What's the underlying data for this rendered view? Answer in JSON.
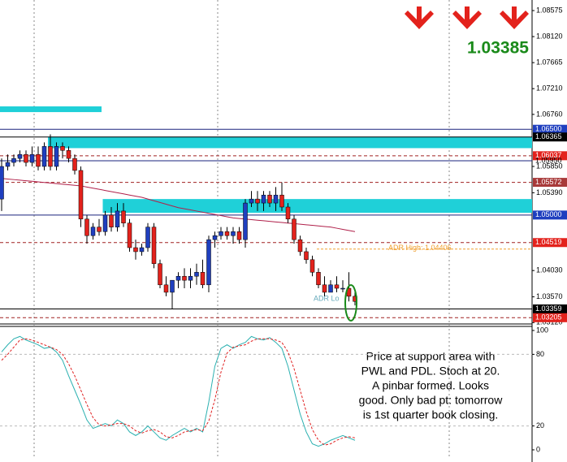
{
  "chart_data": [
    {
      "type": "candlestick",
      "ylim": [
        1.0311,
        1.0876
      ],
      "yticks": [
        1.08575,
        {
          "value": 1.0812,
          "label": "1.08120"
        },
        1.07665,
        {
          "value": 1.0721,
          "label": "1.07210"
        },
        {
          "value": 1.0676,
          "label": "1.06760"
        },
        {
          "value": 1.0585,
          "label": "1.05850"
        },
        {
          "value": 1.0539,
          "label": "1.05390"
        },
        {
          "value": 1.0403,
          "label": "1.04030"
        },
        {
          "value": 1.0357,
          "label": "1.03570"
        },
        {
          "value": 1.0312,
          "label": "1.03120"
        }
      ],
      "up_color": "#1f3fbf",
      "down_color": "#e3221c",
      "ohlc": [
        [
          1.0528,
          1.0599,
          1.0507,
          1.0585
        ],
        [
          1.0585,
          1.0606,
          1.0578,
          1.0592
        ],
        [
          1.0592,
          1.0606,
          1.0585,
          1.0599
        ],
        [
          1.0599,
          1.0613,
          1.0592,
          1.0606
        ],
        [
          1.0606,
          1.0613,
          1.0585,
          1.0592
        ],
        [
          1.0592,
          1.062,
          1.0585,
          1.0606
        ],
        [
          1.0606,
          1.062,
          1.0578,
          1.0585
        ],
        [
          1.0585,
          1.0627,
          1.0578,
          1.062
        ],
        [
          1.062,
          1.0641,
          1.0578,
          1.0585
        ],
        [
          1.0585,
          1.0627,
          1.0578,
          1.062
        ],
        [
          1.062,
          1.0627,
          1.0599,
          1.0613
        ],
        [
          1.0613,
          1.062,
          1.0592,
          1.0599
        ],
        [
          1.0599,
          1.0606,
          1.0571,
          1.0578
        ],
        [
          1.0578,
          1.0585,
          1.0479,
          1.0493
        ],
        [
          1.0493,
          1.05,
          1.045,
          1.0464
        ],
        [
          1.0464,
          1.0486,
          1.0457,
          1.0479
        ],
        [
          1.0479,
          1.0493,
          1.0464,
          1.0471
        ],
        [
          1.0471,
          1.0507,
          1.0464,
          1.05
        ],
        [
          1.05,
          1.0514,
          1.0471,
          1.0479
        ],
        [
          1.0479,
          1.0521,
          1.0471,
          1.0507
        ],
        [
          1.0507,
          1.0521,
          1.0479,
          1.0486
        ],
        [
          1.0486,
          1.0493,
          1.0436,
          1.0443
        ],
        [
          1.0443,
          1.0457,
          1.0422,
          1.0436
        ],
        [
          1.0436,
          1.045,
          1.0429,
          1.0443
        ],
        [
          1.0443,
          1.0486,
          1.0436,
          1.0479
        ],
        [
          1.0479,
          1.0486,
          1.0407,
          1.0415
        ],
        [
          1.0415,
          1.0422,
          1.0372,
          1.0378
        ],
        [
          1.0378,
          1.0393,
          1.0358,
          1.0365
        ],
        [
          1.0365,
          1.0386,
          1.0336,
          1.0386
        ],
        [
          1.0386,
          1.04,
          1.0372,
          1.0393
        ],
        [
          1.0393,
          1.0407,
          1.0372,
          1.0386
        ],
        [
          1.0386,
          1.0407,
          1.0372,
          1.0393
        ],
        [
          1.0393,
          1.0415,
          1.0378,
          1.04
        ],
        [
          1.04,
          1.0422,
          1.0372,
          1.0378
        ],
        [
          1.0378,
          1.0464,
          1.0365,
          1.0457
        ],
        [
          1.0457,
          1.0471,
          1.0443,
          1.0464
        ],
        [
          1.0464,
          1.0479,
          1.0457,
          1.0471
        ],
        [
          1.0471,
          1.0479,
          1.0457,
          1.0464
        ],
        [
          1.0464,
          1.0479,
          1.045,
          1.0471
        ],
        [
          1.0471,
          1.0479,
          1.045,
          1.0457
        ],
        [
          1.0457,
          1.0528,
          1.0443,
          1.0521
        ],
        [
          1.0521,
          1.0542,
          1.0514,
          1.0528
        ],
        [
          1.0528,
          1.0542,
          1.0507,
          1.0521
        ],
        [
          1.0521,
          1.0542,
          1.0507,
          1.0535
        ],
        [
          1.0535,
          1.0542,
          1.0514,
          1.0521
        ],
        [
          1.0521,
          1.0549,
          1.0507,
          1.0535
        ],
        [
          1.0535,
          1.0557,
          1.0507,
          1.0514
        ],
        [
          1.0514,
          1.0521,
          1.0486,
          1.0493
        ],
        [
          1.0493,
          1.05,
          1.045,
          1.0457
        ],
        [
          1.0457,
          1.0464,
          1.0429,
          1.0436
        ],
        [
          1.0436,
          1.0443,
          1.0415,
          1.0422
        ],
        [
          1.0422,
          1.0429,
          1.0393,
          1.04
        ],
        [
          1.04,
          1.0407,
          1.0372,
          1.0378
        ],
        [
          1.0378,
          1.0393,
          1.0358,
          1.0365
        ],
        [
          1.0365,
          1.0386,
          1.0365,
          1.0378
        ],
        [
          1.0378,
          1.0393,
          1.0365,
          1.0372
        ],
        [
          1.0372,
          1.0386,
          1.0365,
          1.0372
        ],
        [
          1.0372,
          1.04,
          1.0349,
          1.0358
        ],
        [
          1.0358,
          1.0365,
          1.0342,
          1.0349
        ]
      ],
      "ma": {
        "color": "#b0204a",
        "values": [
          1.0564,
          1.0563,
          1.0562,
          1.0561,
          1.056,
          1.0559,
          1.0558,
          1.0557,
          1.0556,
          1.0555,
          1.0554,
          1.0553,
          1.0552,
          1.0551,
          1.0549,
          1.0547,
          1.0545,
          1.0543,
          1.0541,
          1.0539,
          1.0537,
          1.0535,
          1.0533,
          1.0531,
          1.0528,
          1.0525,
          1.0522,
          1.0519,
          1.0516,
          1.0513,
          1.0511,
          1.0509,
          1.0507,
          1.0505,
          1.0503,
          1.0501,
          1.0499,
          1.0497,
          1.0495,
          1.0494,
          1.0493,
          1.0492,
          1.0491,
          1.049,
          1.0489,
          1.0488,
          1.0487,
          1.0486,
          1.0485,
          1.0484,
          1.0483,
          1.0482,
          1.0481,
          1.048,
          1.0479,
          1.0477,
          1.0475,
          1.0473,
          1.0471
        ]
      },
      "zones": [
        {
          "from": 1.069,
          "to": 1.068,
          "start": 0,
          "end": 16
        },
        {
          "from": 1.0637,
          "to": 1.0617,
          "start": 8,
          "end": null
        },
        {
          "from": 1.0528,
          "to": 1.0504,
          "start": 17,
          "end": null
        }
      ],
      "levels": [
        {
          "value": 1.065,
          "label": "1.06500",
          "line": "#1a237e",
          "box": "#1f3fbf",
          "dash": false
        },
        {
          "value": 1.06365,
          "label": "1.06365",
          "line": "#000000",
          "box": "#000000",
          "dash": false
        },
        {
          "value": 1.06037,
          "label": "1.06037",
          "line": "#a02020",
          "box": "#e3221c",
          "dash": true
        },
        {
          "value": 1.0595,
          "label": "1.05950",
          "line": "#1a237e",
          "box": null,
          "dash": false
        },
        {
          "value": 1.05572,
          "label": "1.05572",
          "line": "#a02020",
          "box": "#a83a3a",
          "dash": true
        },
        {
          "value": 1.05,
          "label": "1.05000",
          "line": "#1a237e",
          "box": "#1f3fbf",
          "dash": false
        },
        {
          "value": 1.04519,
          "label": "1.04519",
          "line": "#a02020",
          "box": "#e3221c",
          "dash": true
        },
        {
          "value": 1.03359,
          "label": "1.03359",
          "line": "#000000",
          "box": "#000000",
          "dash": false
        },
        {
          "value": 1.03205,
          "label": "1.03205",
          "line": "#a02020",
          "box": "#e3221c",
          "dash": true
        }
      ],
      "adr_high": {
        "value": 1.04406,
        "label": "ADR High: 1.04406",
        "color": "#f0a030"
      },
      "adr_low_label": "ADR Lo",
      "price_label": "1.03385",
      "note": [
        "Price at support area with",
        "PWL and PDL. Stoch at 20.",
        "A pinbar formed. Looks",
        "good. Only bad pt: tomorrow",
        "is 1st quarter book closing."
      ]
    },
    {
      "type": "line",
      "ylim": [
        0,
        100
      ],
      "yticks": [
        100,
        80,
        20,
        0
      ],
      "grid_ticks": [
        80,
        20
      ],
      "series": [
        {
          "color": "#2ab0b0",
          "dash": false,
          "values": [
            82,
            88,
            93,
            95,
            92,
            90,
            88,
            85,
            86,
            82,
            75,
            62,
            50,
            38,
            25,
            18,
            20,
            22,
            20,
            25,
            22,
            15,
            12,
            15,
            20,
            15,
            10,
            8,
            12,
            15,
            18,
            15,
            18,
            15,
            40,
            70,
            85,
            88,
            85,
            88,
            90,
            95,
            93,
            92,
            94,
            90,
            85,
            70,
            50,
            30,
            15,
            5,
            3,
            5,
            8,
            10,
            12,
            10,
            8
          ]
        },
        {
          "color": "#e02020",
          "dash": true,
          "values": [
            75,
            80,
            86,
            92,
            93,
            92,
            90,
            88,
            86,
            84,
            80,
            72,
            62,
            50,
            38,
            27,
            21,
            20,
            21,
            22,
            22,
            20,
            16,
            14,
            16,
            17,
            15,
            11,
            10,
            12,
            15,
            16,
            17,
            16,
            24,
            42,
            65,
            81,
            86,
            87,
            88,
            91,
            93,
            93,
            93,
            92,
            90,
            82,
            68,
            50,
            32,
            17,
            8,
            4,
            5,
            8,
            10,
            11,
            10
          ]
        }
      ]
    }
  ]
}
